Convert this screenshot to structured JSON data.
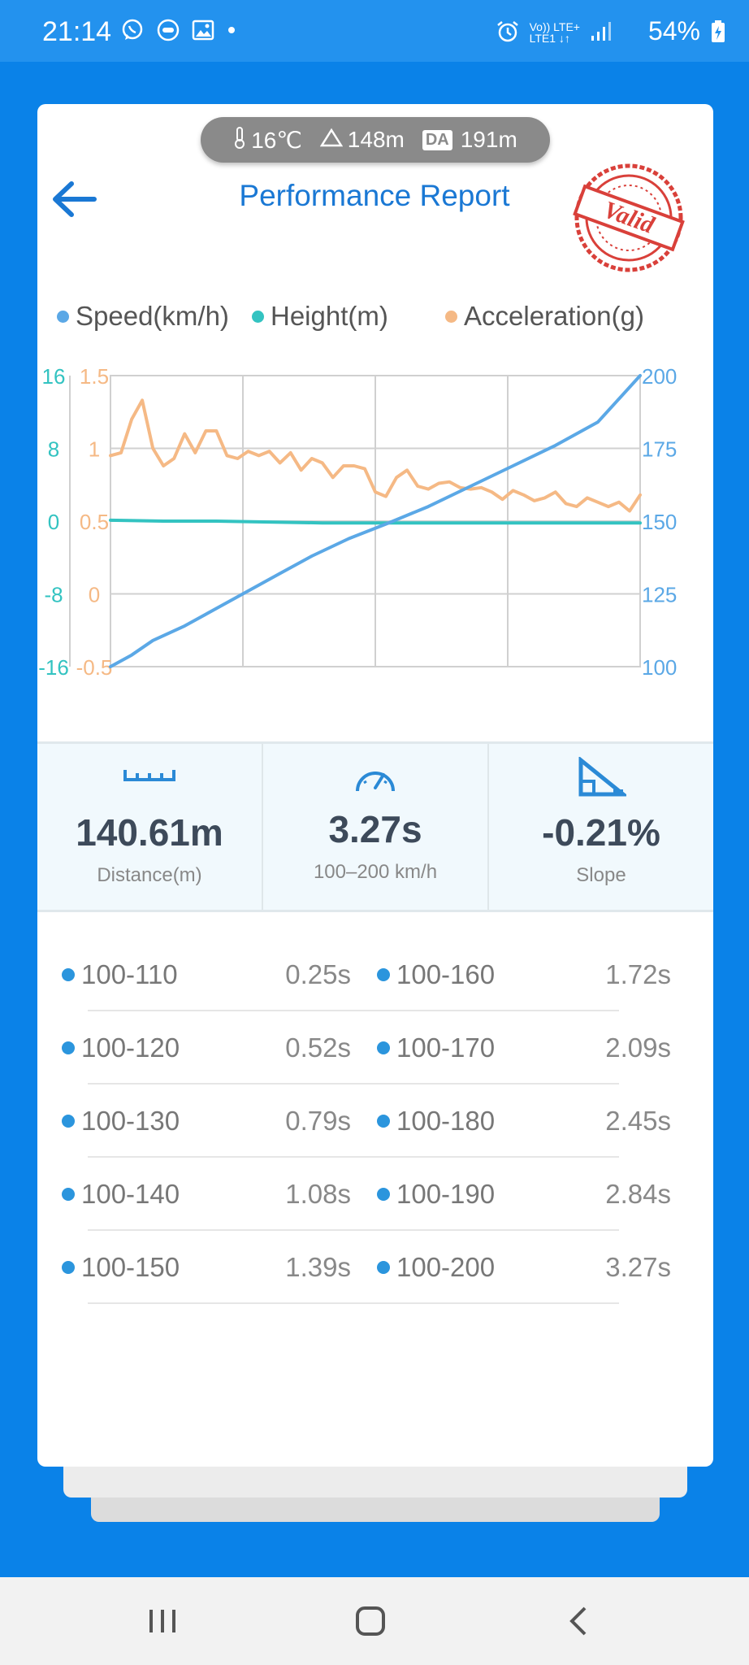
{
  "status": {
    "time": "21:14",
    "battery": "54%",
    "network_top": "Vo)) LTE+",
    "network_bottom": "LTE1 ↓↑"
  },
  "env": {
    "temperature": "16℃",
    "altitude": "148m",
    "density_badge": "DA",
    "density_altitude": "191m"
  },
  "header": {
    "title": "Performance Report",
    "stamp_text": "Valid"
  },
  "legend": [
    {
      "label": "Speed(km/h)",
      "color": "#5ba8e6"
    },
    {
      "label": "Height(m)",
      "color": "#33c3c1"
    },
    {
      "label": "Acceleration(g)",
      "color": "#f5b985"
    }
  ],
  "chart_data": {
    "type": "line",
    "left_axis_height": {
      "ticks": [
        "16",
        "8",
        "0",
        "-8",
        "-16"
      ],
      "range": [
        -16,
        16
      ],
      "color": "#33c3c1"
    },
    "left_axis_acceleration": {
      "ticks": [
        "1.5",
        "1",
        "0.5",
        "0",
        "-0.5"
      ],
      "range": [
        -0.5,
        1.5
      ],
      "color": "#f5b985"
    },
    "right_axis_speed": {
      "ticks": [
        "200",
        "175",
        "150",
        "125",
        "100"
      ],
      "range": [
        100,
        200
      ],
      "color": "#5ba8e6"
    },
    "grid": true,
    "x_range": [
      0,
      1
    ],
    "series": [
      {
        "name": "Speed(km/h)",
        "color": "#5ba8e6",
        "x": [
          0,
          0.04,
          0.08,
          0.14,
          0.2,
          0.26,
          0.32,
          0.38,
          0.45,
          0.52,
          0.6,
          0.68,
          0.76,
          0.84,
          0.92,
          1.0
        ],
        "y": [
          100,
          104,
          109,
          114,
          120,
          126,
          132,
          138,
          144,
          149,
          155,
          162,
          169,
          176,
          184,
          200
        ]
      },
      {
        "name": "Height(m)",
        "color": "#33c3c1",
        "x": [
          0,
          0.1,
          0.2,
          0.3,
          0.4,
          0.5,
          0.6,
          0.7,
          0.8,
          0.9,
          1.0
        ],
        "y": [
          0.1,
          0.0,
          0.0,
          -0.1,
          -0.2,
          -0.2,
          -0.2,
          -0.2,
          -0.2,
          -0.2,
          -0.2
        ]
      },
      {
        "name": "Acceleration(g)",
        "color": "#f5b985",
        "x": [
          0,
          0.02,
          0.04,
          0.06,
          0.08,
          0.1,
          0.12,
          0.14,
          0.16,
          0.18,
          0.2,
          0.22,
          0.24,
          0.26,
          0.28,
          0.3,
          0.32,
          0.34,
          0.36,
          0.38,
          0.4,
          0.42,
          0.44,
          0.46,
          0.48,
          0.5,
          0.52,
          0.54,
          0.56,
          0.58,
          0.6,
          0.62,
          0.64,
          0.66,
          0.68,
          0.7,
          0.72,
          0.74,
          0.76,
          0.78,
          0.8,
          0.82,
          0.84,
          0.86,
          0.88,
          0.9,
          0.92,
          0.94,
          0.96,
          0.98,
          1.0
        ],
        "y": [
          0.95,
          0.97,
          1.2,
          1.33,
          1.0,
          0.88,
          0.93,
          1.1,
          0.97,
          1.12,
          1.12,
          0.95,
          0.93,
          0.98,
          0.95,
          0.98,
          0.9,
          0.97,
          0.85,
          0.93,
          0.9,
          0.8,
          0.88,
          0.88,
          0.86,
          0.7,
          0.67,
          0.8,
          0.85,
          0.74,
          0.72,
          0.76,
          0.77,
          0.73,
          0.72,
          0.73,
          0.7,
          0.65,
          0.71,
          0.68,
          0.64,
          0.66,
          0.7,
          0.62,
          0.6,
          0.66,
          0.63,
          0.6,
          0.63,
          0.57,
          0.68
        ]
      }
    ]
  },
  "stats": [
    {
      "value": "140.61m",
      "label": "Distance(m)",
      "icon": "ruler-icon"
    },
    {
      "value": "3.27s",
      "label": "100–200 km/h",
      "icon": "speedometer-icon"
    },
    {
      "value": "-0.21%",
      "label": "Slope",
      "icon": "slope-icon"
    }
  ],
  "splits": [
    {
      "left_range": "100-110",
      "left_time": "0.25s",
      "right_range": "100-160",
      "right_time": "1.72s"
    },
    {
      "left_range": "100-120",
      "left_time": "0.52s",
      "right_range": "100-170",
      "right_time": "2.09s"
    },
    {
      "left_range": "100-130",
      "left_time": "0.79s",
      "right_range": "100-180",
      "right_time": "2.45s"
    },
    {
      "left_range": "100-140",
      "left_time": "1.08s",
      "right_range": "100-190",
      "right_time": "2.84s"
    },
    {
      "left_range": "100-150",
      "left_time": "1.39s",
      "right_range": "100-200",
      "right_time": "3.27s"
    }
  ]
}
